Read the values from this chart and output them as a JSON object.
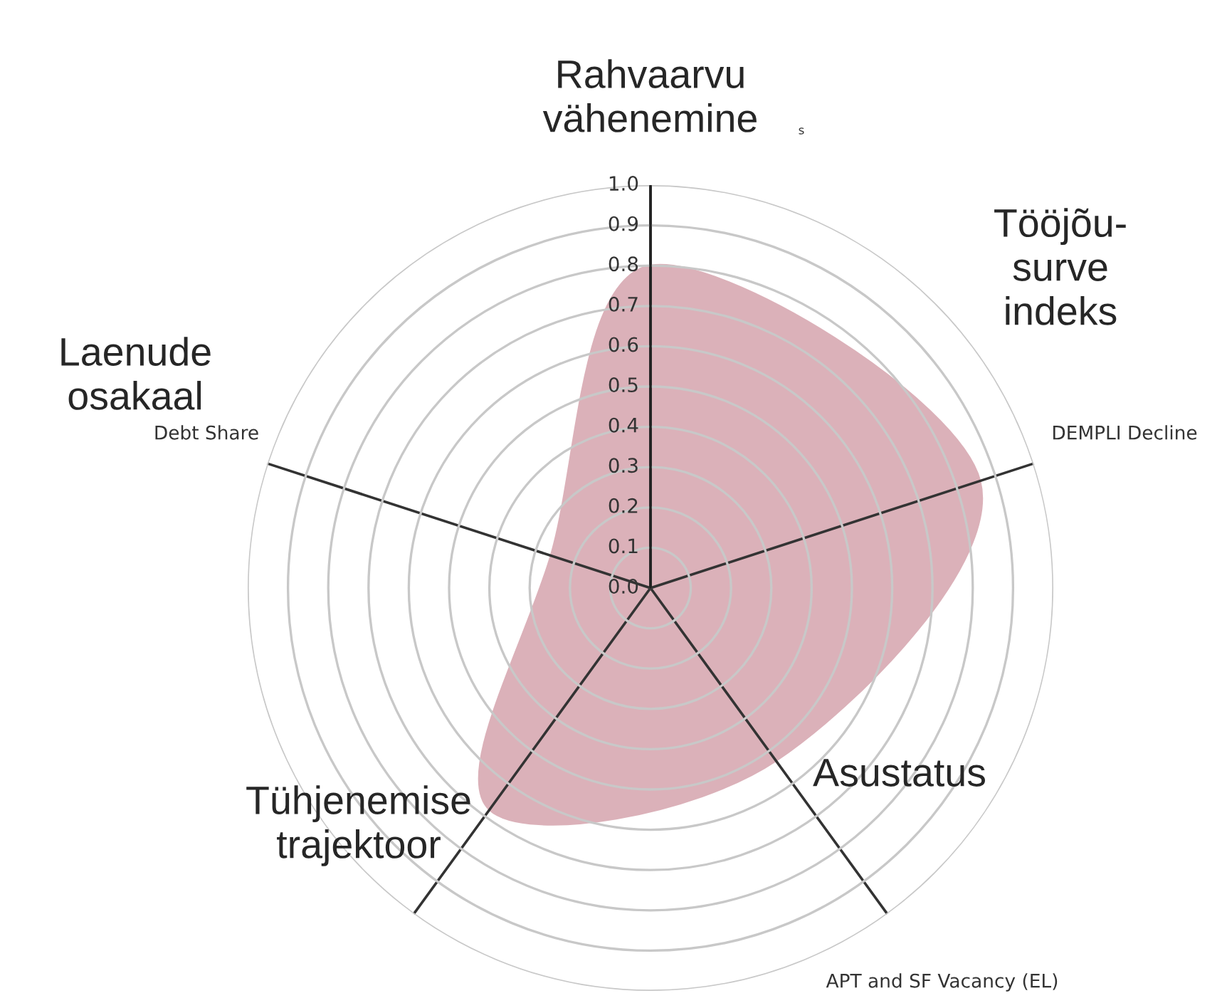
{
  "chart_data": {
    "type": "radar",
    "categories": [
      "Rahvaarvu vähenemine",
      "Tööjõu-surve indeks",
      "Asustatus",
      "Tühjenemise trajektoor",
      "Laenude osakaal"
    ],
    "series": [
      {
        "color": "#dbb1b9",
        "values": [
          0.8,
          0.86,
          0.53,
          0.68,
          0.26
        ]
      }
    ],
    "ylim": [
      0,
      1.0
    ],
    "yticks": [
      {
        "value": 0,
        "label": "0.0"
      },
      0.1,
      0.2,
      0.3,
      0.4,
      0.5,
      0.6,
      0.7,
      0.8,
      0.9,
      {
        "value": 1,
        "label": "1.0"
      }
    ],
    "grid": true,
    "annotations": [
      "Debt Share",
      "DEMPLI Decline",
      "APT and SF Vacancy (EL)",
      "s"
    ]
  }
}
